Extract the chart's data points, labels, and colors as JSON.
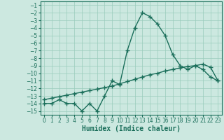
{
  "xlabel": "Humidex (Indice chaleur)",
  "background_color": "#cce8e0",
  "grid_color": "#99ccbb",
  "line_color": "#1a6e5a",
  "xlim": [
    -0.5,
    23.5
  ],
  "ylim": [
    -15.5,
    -0.5
  ],
  "xticks": [
    0,
    1,
    2,
    3,
    4,
    5,
    6,
    7,
    8,
    9,
    10,
    11,
    12,
    13,
    14,
    15,
    16,
    17,
    18,
    19,
    20,
    21,
    22,
    23
  ],
  "yticks": [
    -15,
    -14,
    -13,
    -12,
    -11,
    -10,
    -9,
    -8,
    -7,
    -6,
    -5,
    -4,
    -3,
    -2,
    -1
  ],
  "series1_x": [
    0,
    1,
    2,
    3,
    4,
    5,
    6,
    7,
    8,
    9,
    10,
    11,
    12,
    13,
    14,
    15,
    16,
    17,
    18,
    19,
    20,
    21,
    22,
    23
  ],
  "series1_y": [
    -14,
    -14,
    -13.5,
    -14,
    -14,
    -15,
    -14,
    -15,
    -13,
    -11,
    -11.5,
    -7,
    -4,
    -2,
    -2.5,
    -3.5,
    -5,
    -7.5,
    -9,
    -9.5,
    -9,
    -9.5,
    -10.5,
    -11
  ],
  "series2_x": [
    0,
    1,
    2,
    3,
    4,
    5,
    6,
    7,
    8,
    9,
    10,
    11,
    12,
    13,
    14,
    15,
    16,
    17,
    18,
    19,
    20,
    21,
    22,
    23
  ],
  "series2_y": [
    -13.5,
    -13.3,
    -13.1,
    -12.9,
    -12.7,
    -12.5,
    -12.3,
    -12.1,
    -11.9,
    -11.7,
    -11.4,
    -11.1,
    -10.8,
    -10.5,
    -10.2,
    -10.0,
    -9.7,
    -9.5,
    -9.3,
    -9.1,
    -9.0,
    -8.8,
    -9.2,
    -11.0
  ],
  "marker": "+",
  "marker_size": 4,
  "line_width": 1.0,
  "xlabel_fontsize": 7,
  "tick_fontsize": 5.5
}
